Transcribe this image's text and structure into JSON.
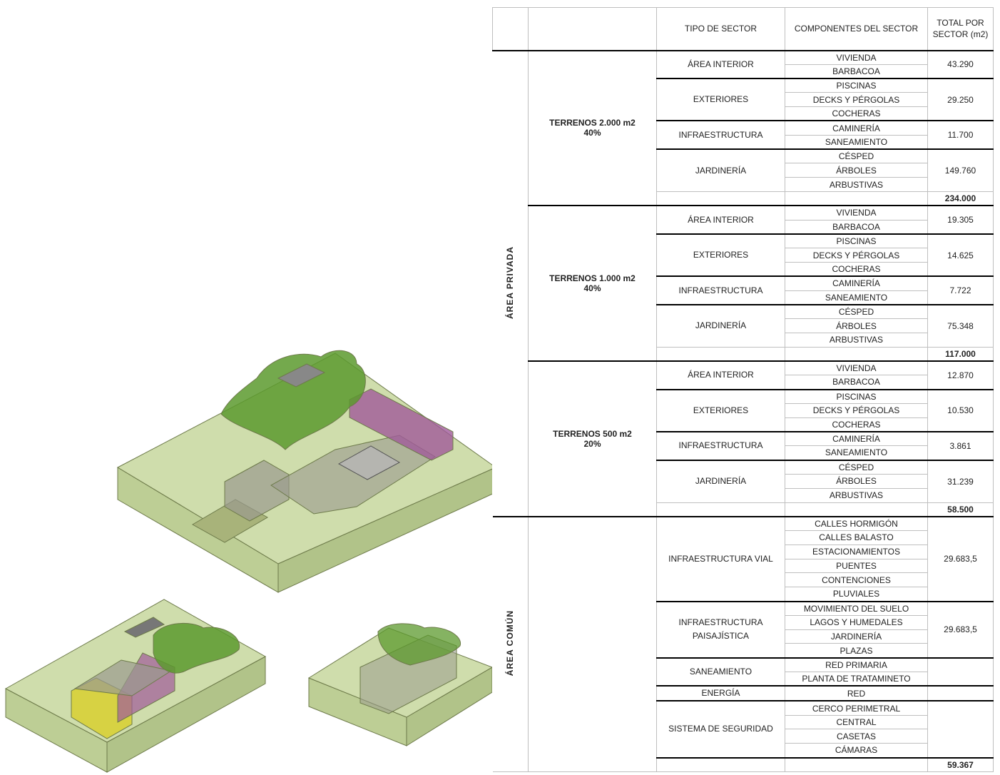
{
  "table": {
    "header": {
      "tipo": "TIPO DE SECTOR",
      "componentes": "COMPONENTES DEL SECTOR",
      "total": "TOTAL POR SECTOR (m2)"
    },
    "sections": [
      {
        "label": "ÁREA PRIVADA",
        "groups": [
          {
            "terreno": "TERRENOS 2.000 m2",
            "share": "40%",
            "subtotal": "234.000",
            "sectors": [
              {
                "tipo": "ÁREA INTERIOR",
                "components": [
                  "VIVIENDA",
                  "BARBACOA"
                ],
                "total": "43.290"
              },
              {
                "tipo": "EXTERIORES",
                "components": [
                  "PISCINAS",
                  "DECKS Y PÉRGOLAS",
                  "COCHERAS"
                ],
                "total": "29.250"
              },
              {
                "tipo": "INFRAESTRUCTURA",
                "components": [
                  "CAMINERÍA",
                  "SANEAMIENTO"
                ],
                "total": "11.700"
              },
              {
                "tipo": "JARDINERÍA",
                "components": [
                  "CÉSPED",
                  "ÁRBOLES",
                  "ARBUSTIVAS"
                ],
                "total": "149.760"
              }
            ]
          },
          {
            "terreno": "TERRENOS 1.000 m2",
            "share": "40%",
            "subtotal": "117.000",
            "sectors": [
              {
                "tipo": "ÁREA INTERIOR",
                "components": [
                  "VIVIENDA",
                  "BARBACOA"
                ],
                "total": "19.305"
              },
              {
                "tipo": "EXTERIORES",
                "components": [
                  "PISCINAS",
                  "DECKS Y PÉRGOLAS",
                  "COCHERAS"
                ],
                "total": "14.625"
              },
              {
                "tipo": "INFRAESTRUCTURA",
                "components": [
                  "CAMINERÍA",
                  "SANEAMIENTO"
                ],
                "total": "7.722"
              },
              {
                "tipo": "JARDINERÍA",
                "components": [
                  "CÉSPED",
                  "ÁRBOLES",
                  "ARBUSTIVAS"
                ],
                "total": "75.348"
              }
            ]
          },
          {
            "terreno": "TERRENOS 500 m2",
            "share": "20%",
            "subtotal": "58.500",
            "sectors": [
              {
                "tipo": "ÁREA INTERIOR",
                "components": [
                  "VIVIENDA",
                  "BARBACOA"
                ],
                "total": "12.870"
              },
              {
                "tipo": "EXTERIORES",
                "components": [
                  "PISCINAS",
                  "DECKS Y PÉRGOLAS",
                  "COCHERAS"
                ],
                "total": "10.530"
              },
              {
                "tipo": "INFRAESTRUCTURA",
                "components": [
                  "CAMINERÍA",
                  "SANEAMIENTO"
                ],
                "total": "3.861"
              },
              {
                "tipo": "JARDINERÍA",
                "components": [
                  "CÉSPED",
                  "ÁRBOLES",
                  "ARBUSTIVAS"
                ],
                "total": "31.239"
              }
            ]
          }
        ]
      },
      {
        "label": "ÁREA COMÚN",
        "total": "59.367",
        "sectors": [
          {
            "tipo": "INFRAESTRUCTURA VIAL",
            "components": [
              "CALLES HORMIGÓN",
              "CALLES BALASTO",
              "ESTACIONAMIENTOS",
              "PUENTES",
              "CONTENCIONES",
              "PLUVIALES"
            ],
            "total": "29.683,5"
          },
          {
            "tipo": "INFRAESTRUCTURA PAISAJÍSTICA",
            "components": [
              "MOVIMIENTO DEL SUELO",
              "LAGOS Y HUMEDALES",
              "JARDINERÍA",
              "PLAZAS"
            ],
            "total": "29.683,5"
          },
          {
            "tipo": "SANEAMIENTO",
            "components": [
              "RED PRIMARIA",
              "PLANTA DE TRATAMINETO"
            ]
          },
          {
            "tipo": "ENERGÍA",
            "components": [
              "RED"
            ]
          },
          {
            "tipo": "SISTEMA DE SEGURIDAD",
            "components": [
              "CERCO PERIMETRAL",
              "CENTRAL",
              "CASETAS",
              "CÁMARAS"
            ]
          }
        ]
      }
    ]
  }
}
